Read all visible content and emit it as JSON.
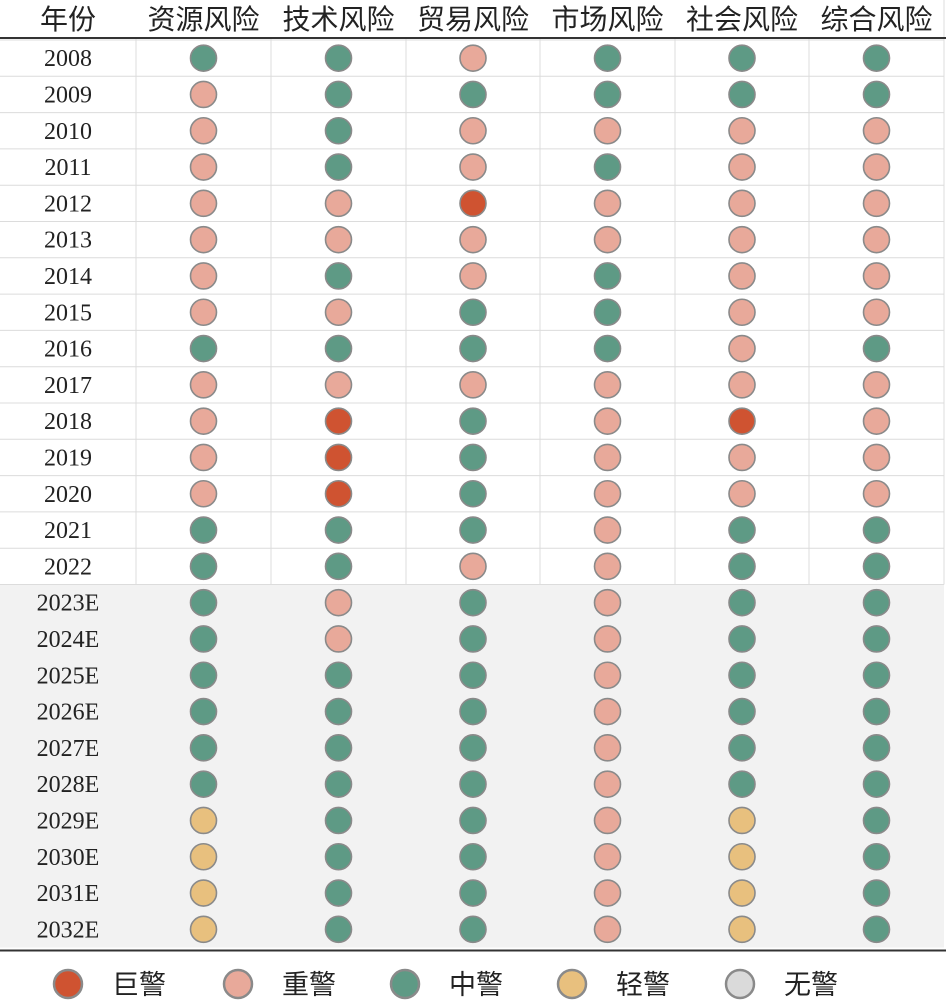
{
  "chart_data": {
    "type": "table",
    "header": {
      "year_col": "年份",
      "columns": [
        "资源风险",
        "技术风险",
        "贸易风险",
        "市场风险",
        "社会风险",
        "综合风险"
      ]
    },
    "levels": {
      "巨警": {
        "label": "巨警",
        "color": "#cf5331"
      },
      "重警": {
        "label": "重警",
        "color": "#e8a99a"
      },
      "中警": {
        "label": "中警",
        "color": "#5e9a85"
      },
      "轻警": {
        "label": "轻警",
        "color": "#e8c07e"
      },
      "无警": {
        "label": "无警",
        "color": "#dadada"
      }
    },
    "legend": [
      "巨警",
      "重警",
      "中警",
      "轻警",
      "无警"
    ],
    "rows": [
      {
        "year": "2008",
        "values": [
          "中警",
          "中警",
          "重警",
          "中警",
          "中警",
          "中警"
        ]
      },
      {
        "year": "2009",
        "values": [
          "重警",
          "中警",
          "中警",
          "中警",
          "中警",
          "中警"
        ]
      },
      {
        "year": "2010",
        "values": [
          "重警",
          "中警",
          "重警",
          "重警",
          "重警",
          "重警"
        ]
      },
      {
        "year": "2011",
        "values": [
          "重警",
          "中警",
          "重警",
          "中警",
          "重警",
          "重警"
        ]
      },
      {
        "year": "2012",
        "values": [
          "重警",
          "重警",
          "巨警",
          "重警",
          "重警",
          "重警"
        ]
      },
      {
        "year": "2013",
        "values": [
          "重警",
          "重警",
          "重警",
          "重警",
          "重警",
          "重警"
        ]
      },
      {
        "year": "2014",
        "values": [
          "重警",
          "中警",
          "重警",
          "中警",
          "重警",
          "重警"
        ]
      },
      {
        "year": "2015",
        "values": [
          "重警",
          "重警",
          "中警",
          "中警",
          "重警",
          "重警"
        ]
      },
      {
        "year": "2016",
        "values": [
          "中警",
          "中警",
          "中警",
          "中警",
          "重警",
          "中警"
        ]
      },
      {
        "year": "2017",
        "values": [
          "重警",
          "重警",
          "重警",
          "重警",
          "重警",
          "重警"
        ]
      },
      {
        "year": "2018",
        "values": [
          "重警",
          "巨警",
          "中警",
          "重警",
          "巨警",
          "重警"
        ]
      },
      {
        "year": "2019",
        "values": [
          "重警",
          "巨警",
          "中警",
          "重警",
          "重警",
          "重警"
        ]
      },
      {
        "year": "2020",
        "values": [
          "重警",
          "巨警",
          "中警",
          "重警",
          "重警",
          "重警"
        ]
      },
      {
        "year": "2021",
        "values": [
          "中警",
          "中警",
          "中警",
          "重警",
          "中警",
          "中警"
        ]
      },
      {
        "year": "2022",
        "values": [
          "中警",
          "中警",
          "重警",
          "重警",
          "中警",
          "中警"
        ]
      },
      {
        "year": "2023E",
        "values": [
          "中警",
          "重警",
          "中警",
          "重警",
          "中警",
          "中警"
        ]
      },
      {
        "year": "2024E",
        "values": [
          "中警",
          "重警",
          "中警",
          "重警",
          "中警",
          "中警"
        ]
      },
      {
        "year": "2025E",
        "values": [
          "中警",
          "中警",
          "中警",
          "重警",
          "中警",
          "中警"
        ]
      },
      {
        "year": "2026E",
        "values": [
          "中警",
          "中警",
          "中警",
          "重警",
          "中警",
          "中警"
        ]
      },
      {
        "year": "2027E",
        "values": [
          "中警",
          "中警",
          "中警",
          "重警",
          "中警",
          "中警"
        ]
      },
      {
        "year": "2028E",
        "values": [
          "中警",
          "中警",
          "中警",
          "重警",
          "中警",
          "中警"
        ]
      },
      {
        "year": "2029E",
        "values": [
          "轻警",
          "中警",
          "中警",
          "重警",
          "轻警",
          "中警"
        ]
      },
      {
        "year": "2030E",
        "values": [
          "轻警",
          "中警",
          "中警",
          "重警",
          "轻警",
          "中警"
        ]
      },
      {
        "year": "2031E",
        "values": [
          "轻警",
          "中警",
          "中警",
          "重警",
          "轻警",
          "中警"
        ]
      },
      {
        "year": "2032E",
        "values": [
          "轻警",
          "中警",
          "中警",
          "重警",
          "轻警",
          "中警"
        ]
      }
    ]
  }
}
